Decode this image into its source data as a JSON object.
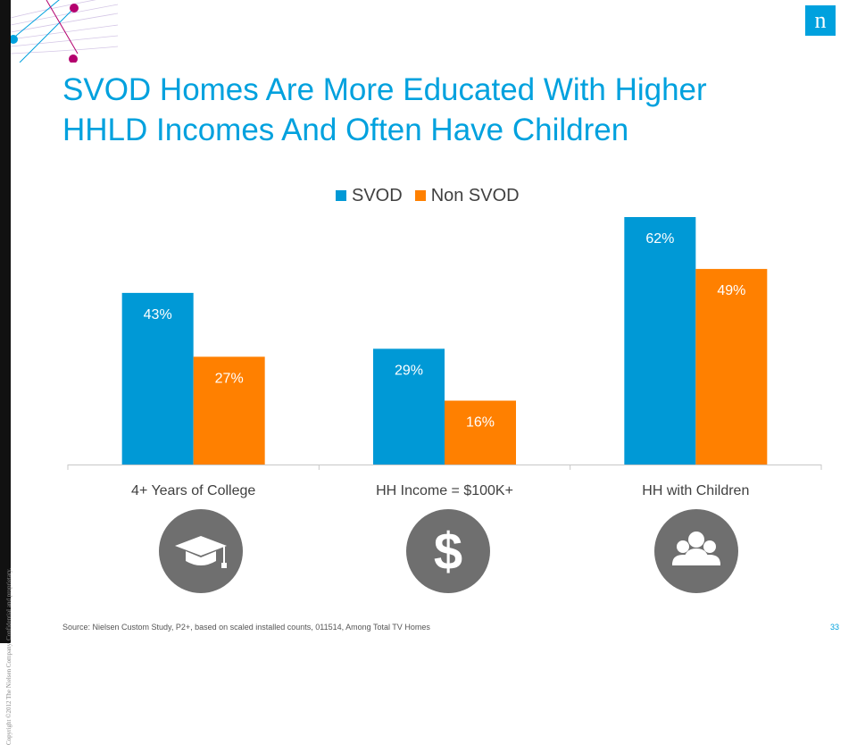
{
  "slide": {
    "title_line1": "SVOD Homes Are More Educated With Higher",
    "title_line2": "HHLD Incomes And Often Have Children",
    "logo_letter": "n",
    "copyright": "Copyright ©2012 The Nielsen Company. Confidential and proprietary.",
    "source": "Source:  Nielsen Custom Study, P2+, based on scaled installed counts, 011514, Among Total TV Homes",
    "page_number": "33"
  },
  "colors": {
    "svod": "#0099d6",
    "non_svod": "#ff8000",
    "title": "#00a1de",
    "icon_bg": "#6f6f6f"
  },
  "icons": [
    "graduation-cap-icon",
    "dollar-sign-icon",
    "family-icon"
  ],
  "chart_data": {
    "type": "bar",
    "categories": [
      "4+ Years of College",
      "HH Income = $100K+",
      "HH with Children"
    ],
    "series": [
      {
        "name": "SVOD",
        "values": [
          43,
          29,
          62
        ],
        "labels": [
          "43%",
          "29%",
          "62%"
        ]
      },
      {
        "name": "Non SVOD",
        "values": [
          27,
          16,
          49
        ],
        "labels": [
          "27%",
          "16%",
          "49%"
        ]
      }
    ],
    "ylim": [
      0,
      62
    ],
    "legend_position": "top-center",
    "grid": false
  }
}
